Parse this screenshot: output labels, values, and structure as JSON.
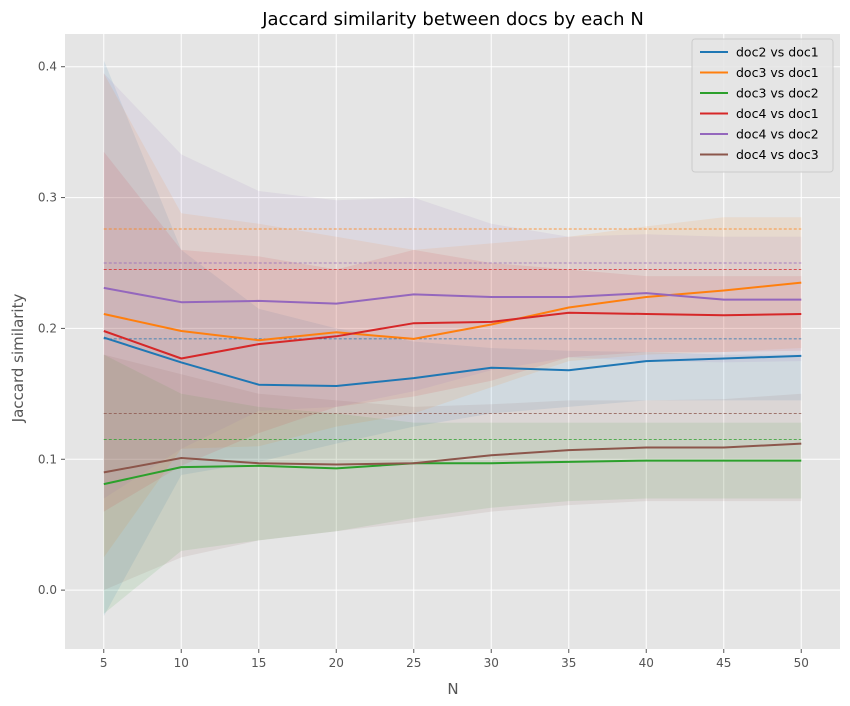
{
  "chart_data": {
    "type": "line",
    "title": "Jaccard similarity between docs by each N",
    "xlabel": "N",
    "ylabel": "Jaccard similarity",
    "x": [
      5,
      10,
      15,
      20,
      25,
      30,
      35,
      40,
      45,
      50
    ],
    "xlim": [
      2.5,
      52.5
    ],
    "ylim": [
      -0.045,
      0.425
    ],
    "xticks": [
      "5",
      "10",
      "15",
      "20",
      "25",
      "30",
      "35",
      "40",
      "45",
      "50"
    ],
    "yticks": [
      "0.0",
      "0.1",
      "0.2",
      "0.3",
      "0.4"
    ],
    "grid": true,
    "legend_position": "top-right",
    "series": [
      {
        "name": "doc2 vs doc1",
        "color": "#1f77b4",
        "values": [
          0.193,
          0.174,
          0.157,
          0.156,
          0.162,
          0.17,
          0.168,
          0.175,
          0.177,
          0.179
        ],
        "upper": [
          0.405,
          0.26,
          0.215,
          0.2,
          0.19,
          0.185,
          0.183,
          0.182,
          0.18,
          0.18
        ],
        "lower": [
          -0.02,
          0.088,
          0.098,
          0.112,
          0.125,
          0.135,
          0.14,
          0.145,
          0.145,
          0.145
        ],
        "mean": 0.192
      },
      {
        "name": "doc3 vs doc1",
        "color": "#ff7f0e",
        "values": [
          0.211,
          0.198,
          0.191,
          0.197,
          0.192,
          0.203,
          0.216,
          0.224,
          0.229,
          0.235
        ],
        "upper": [
          0.395,
          0.288,
          0.28,
          0.27,
          0.26,
          0.265,
          0.27,
          0.278,
          0.285,
          0.285
        ],
        "lower": [
          0.025,
          0.108,
          0.11,
          0.125,
          0.135,
          0.155,
          0.175,
          0.18,
          0.182,
          0.185
        ],
        "mean": 0.276
      },
      {
        "name": "doc3 vs doc2",
        "color": "#2ca02c",
        "values": [
          0.081,
          0.094,
          0.095,
          0.093,
          0.097,
          0.097,
          0.098,
          0.099,
          0.099,
          0.099
        ],
        "upper": [
          0.18,
          0.15,
          0.14,
          0.135,
          0.128,
          0.128,
          0.128,
          0.128,
          0.128,
          0.128
        ],
        "lower": [
          -0.018,
          0.03,
          0.038,
          0.045,
          0.055,
          0.063,
          0.068,
          0.07,
          0.07,
          0.07
        ],
        "mean": 0.115
      },
      {
        "name": "doc4 vs doc1",
        "color": "#d62728",
        "values": [
          0.198,
          0.177,
          0.188,
          0.194,
          0.204,
          0.205,
          0.212,
          0.211,
          0.21,
          0.211
        ],
        "upper": [
          0.335,
          0.26,
          0.255,
          0.245,
          0.26,
          0.25,
          0.245,
          0.24,
          0.24,
          0.24
        ],
        "lower": [
          0.06,
          0.095,
          0.12,
          0.14,
          0.148,
          0.16,
          0.178,
          0.182,
          0.182,
          0.183
        ],
        "mean": 0.245
      },
      {
        "name": "doc4 vs doc2",
        "color": "#9467bd",
        "values": [
          0.231,
          0.22,
          0.221,
          0.219,
          0.226,
          0.224,
          0.224,
          0.227,
          0.222,
          0.222
        ],
        "upper": [
          0.395,
          0.333,
          0.305,
          0.298,
          0.3,
          0.28,
          0.27,
          0.272,
          0.27,
          0.27
        ],
        "lower": [
          0.07,
          0.108,
          0.137,
          0.14,
          0.152,
          0.168,
          0.178,
          0.175,
          0.174,
          0.175
        ],
        "mean": 0.25
      },
      {
        "name": "doc4 vs doc3",
        "color": "#8c564b",
        "values": [
          0.09,
          0.101,
          0.097,
          0.096,
          0.097,
          0.103,
          0.107,
          0.109,
          0.109,
          0.112
        ],
        "upper": [
          0.18,
          0.165,
          0.15,
          0.145,
          0.14,
          0.142,
          0.145,
          0.145,
          0.146,
          0.15
        ],
        "lower": [
          0.0,
          0.025,
          0.038,
          0.045,
          0.052,
          0.06,
          0.065,
          0.068,
          0.068,
          0.068
        ],
        "mean": 0.135
      }
    ]
  }
}
